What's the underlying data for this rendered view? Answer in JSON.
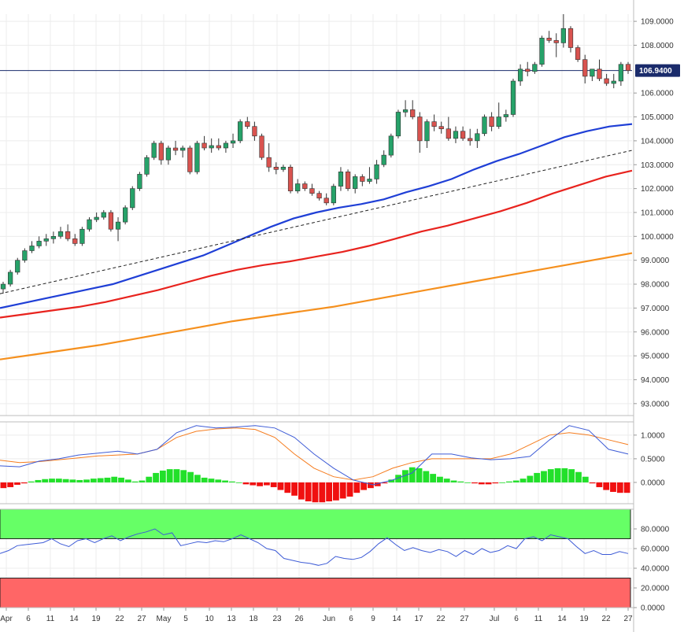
{
  "chart_data": [
    {
      "type": "candlestick",
      "title": "",
      "ylim": [
        92.5,
        109.3
      ],
      "y_ticks": [
        "109.0000",
        "108.0000",
        "106.0000",
        "105.0000",
        "104.0000",
        "103.0000",
        "102.0000",
        "101.0000",
        "100.0000",
        "99.0000",
        "98.0000",
        "97.0000",
        "96.0000",
        "95.0000",
        "94.0000",
        "93.0000"
      ],
      "last_price": "106.9400",
      "last_price_color": "#1a2b6b",
      "up_color": "#26a269",
      "down_color": "#d9534f",
      "candles": [
        {
          "o": 97.8,
          "h": 98.1,
          "l": 97.6,
          "c": 98.0
        },
        {
          "o": 98.0,
          "h": 98.6,
          "l": 97.9,
          "c": 98.5
        },
        {
          "o": 98.5,
          "h": 99.1,
          "l": 98.4,
          "c": 99.0
        },
        {
          "o": 99.0,
          "h": 99.5,
          "l": 98.9,
          "c": 99.4
        },
        {
          "o": 99.4,
          "h": 99.8,
          "l": 99.3,
          "c": 99.6
        },
        {
          "o": 99.6,
          "h": 100.0,
          "l": 99.5,
          "c": 99.8
        },
        {
          "o": 99.8,
          "h": 100.1,
          "l": 99.6,
          "c": 99.9
        },
        {
          "o": 99.9,
          "h": 100.2,
          "l": 99.7,
          "c": 100.0
        },
        {
          "o": 100.0,
          "h": 100.4,
          "l": 99.9,
          "c": 100.2
        },
        {
          "o": 100.2,
          "h": 100.5,
          "l": 99.8,
          "c": 99.9
        },
        {
          "o": 99.9,
          "h": 100.1,
          "l": 99.6,
          "c": 99.7
        },
        {
          "o": 99.7,
          "h": 100.4,
          "l": 99.6,
          "c": 100.3
        },
        {
          "o": 100.3,
          "h": 100.8,
          "l": 100.2,
          "c": 100.7
        },
        {
          "o": 100.7,
          "h": 101.0,
          "l": 100.6,
          "c": 100.8
        },
        {
          "o": 100.8,
          "h": 101.1,
          "l": 100.7,
          "c": 101.0
        },
        {
          "o": 101.0,
          "h": 101.1,
          "l": 100.2,
          "c": 100.3
        },
        {
          "o": 100.3,
          "h": 100.8,
          "l": 99.8,
          "c": 100.6
        },
        {
          "o": 100.6,
          "h": 101.3,
          "l": 100.5,
          "c": 101.2
        },
        {
          "o": 101.2,
          "h": 102.1,
          "l": 101.1,
          "c": 102.0
        },
        {
          "o": 102.0,
          "h": 102.7,
          "l": 101.9,
          "c": 102.6
        },
        {
          "o": 102.6,
          "h": 103.4,
          "l": 102.5,
          "c": 103.3
        },
        {
          "o": 103.3,
          "h": 104.0,
          "l": 103.2,
          "c": 103.9
        },
        {
          "o": 103.9,
          "h": 104.0,
          "l": 103.0,
          "c": 103.2
        },
        {
          "o": 103.2,
          "h": 103.8,
          "l": 103.0,
          "c": 103.7
        },
        {
          "o": 103.7,
          "h": 104.0,
          "l": 103.4,
          "c": 103.6
        },
        {
          "o": 103.6,
          "h": 103.8,
          "l": 103.3,
          "c": 103.7
        },
        {
          "o": 103.7,
          "h": 103.8,
          "l": 102.6,
          "c": 102.7
        },
        {
          "o": 102.7,
          "h": 104.0,
          "l": 102.6,
          "c": 103.9
        },
        {
          "o": 103.9,
          "h": 104.2,
          "l": 103.6,
          "c": 103.7
        },
        {
          "o": 103.7,
          "h": 104.1,
          "l": 103.5,
          "c": 103.8
        },
        {
          "o": 103.8,
          "h": 104.1,
          "l": 103.6,
          "c": 103.7
        },
        {
          "o": 103.7,
          "h": 104.0,
          "l": 103.5,
          "c": 103.9
        },
        {
          "o": 103.9,
          "h": 104.3,
          "l": 103.7,
          "c": 104.0
        },
        {
          "o": 104.0,
          "h": 104.9,
          "l": 103.9,
          "c": 104.8
        },
        {
          "o": 104.8,
          "h": 105.0,
          "l": 104.5,
          "c": 104.6
        },
        {
          "o": 104.6,
          "h": 104.8,
          "l": 104.0,
          "c": 104.2
        },
        {
          "o": 104.2,
          "h": 104.3,
          "l": 103.2,
          "c": 103.3
        },
        {
          "o": 103.3,
          "h": 103.9,
          "l": 102.7,
          "c": 102.9
        },
        {
          "o": 102.9,
          "h": 103.1,
          "l": 102.6,
          "c": 102.8
        },
        {
          "o": 102.8,
          "h": 103.0,
          "l": 102.7,
          "c": 102.9
        },
        {
          "o": 102.9,
          "h": 103.0,
          "l": 101.8,
          "c": 101.9
        },
        {
          "o": 101.9,
          "h": 102.4,
          "l": 101.8,
          "c": 102.2
        },
        {
          "o": 102.2,
          "h": 102.3,
          "l": 101.9,
          "c": 102.0
        },
        {
          "o": 102.0,
          "h": 102.2,
          "l": 101.7,
          "c": 101.8
        },
        {
          "o": 101.8,
          "h": 101.9,
          "l": 101.5,
          "c": 101.6
        },
        {
          "o": 101.6,
          "h": 101.8,
          "l": 101.3,
          "c": 101.4
        },
        {
          "o": 101.4,
          "h": 102.2,
          "l": 101.3,
          "c": 102.1
        },
        {
          "o": 102.1,
          "h": 102.9,
          "l": 101.9,
          "c": 102.7
        },
        {
          "o": 102.7,
          "h": 102.8,
          "l": 101.9,
          "c": 102.0
        },
        {
          "o": 102.0,
          "h": 102.6,
          "l": 101.8,
          "c": 102.5
        },
        {
          "o": 102.5,
          "h": 102.6,
          "l": 102.1,
          "c": 102.3
        },
        {
          "o": 102.3,
          "h": 102.9,
          "l": 102.2,
          "c": 102.4
        },
        {
          "o": 102.4,
          "h": 103.2,
          "l": 102.2,
          "c": 103.0
        },
        {
          "o": 103.0,
          "h": 103.6,
          "l": 102.9,
          "c": 103.4
        },
        {
          "o": 103.4,
          "h": 104.3,
          "l": 103.3,
          "c": 104.2
        },
        {
          "o": 104.2,
          "h": 105.3,
          "l": 104.1,
          "c": 105.2
        },
        {
          "o": 105.2,
          "h": 105.7,
          "l": 105.0,
          "c": 105.3
        },
        {
          "o": 105.3,
          "h": 105.7,
          "l": 104.9,
          "c": 105.0
        },
        {
          "o": 105.0,
          "h": 105.2,
          "l": 103.5,
          "c": 104.0
        },
        {
          "o": 104.0,
          "h": 104.9,
          "l": 103.7,
          "c": 104.8
        },
        {
          "o": 104.8,
          "h": 105.1,
          "l": 104.4,
          "c": 104.6
        },
        {
          "o": 104.6,
          "h": 104.8,
          "l": 104.3,
          "c": 104.5
        },
        {
          "o": 104.5,
          "h": 105.0,
          "l": 104.0,
          "c": 104.1
        },
        {
          "o": 104.1,
          "h": 104.6,
          "l": 103.9,
          "c": 104.4
        },
        {
          "o": 104.4,
          "h": 104.6,
          "l": 104.0,
          "c": 104.1
        },
        {
          "o": 104.1,
          "h": 104.5,
          "l": 103.8,
          "c": 104.0
        },
        {
          "o": 104.0,
          "h": 104.5,
          "l": 103.7,
          "c": 104.3
        },
        {
          "o": 104.3,
          "h": 105.1,
          "l": 104.2,
          "c": 105.0
        },
        {
          "o": 105.0,
          "h": 105.2,
          "l": 104.4,
          "c": 104.6
        },
        {
          "o": 104.6,
          "h": 105.6,
          "l": 104.5,
          "c": 105.0
        },
        {
          "o": 105.0,
          "h": 105.3,
          "l": 104.8,
          "c": 105.1
        },
        {
          "o": 105.1,
          "h": 106.6,
          "l": 105.0,
          "c": 106.5
        },
        {
          "o": 106.5,
          "h": 107.2,
          "l": 106.3,
          "c": 107.0
        },
        {
          "o": 107.0,
          "h": 107.3,
          "l": 106.7,
          "c": 106.9
        },
        {
          "o": 106.9,
          "h": 107.3,
          "l": 106.8,
          "c": 107.2
        },
        {
          "o": 107.2,
          "h": 108.4,
          "l": 107.1,
          "c": 108.3
        },
        {
          "o": 108.3,
          "h": 108.6,
          "l": 108.1,
          "c": 108.2
        },
        {
          "o": 108.2,
          "h": 108.5,
          "l": 107.5,
          "c": 108.1
        },
        {
          "o": 108.1,
          "h": 109.3,
          "l": 107.9,
          "c": 108.7
        },
        {
          "o": 108.7,
          "h": 108.8,
          "l": 107.7,
          "c": 107.9
        },
        {
          "o": 107.9,
          "h": 108.0,
          "l": 107.3,
          "c": 107.4
        },
        {
          "o": 107.4,
          "h": 107.6,
          "l": 106.4,
          "c": 106.7
        },
        {
          "o": 106.7,
          "h": 107.0,
          "l": 106.5,
          "c": 107.0
        },
        {
          "o": 107.0,
          "h": 107.4,
          "l": 106.5,
          "c": 106.6
        },
        {
          "o": 106.6,
          "h": 106.8,
          "l": 106.3,
          "c": 106.4
        },
        {
          "o": 106.4,
          "h": 106.8,
          "l": 106.2,
          "c": 106.5
        },
        {
          "o": 106.5,
          "h": 107.3,
          "l": 106.3,
          "c": 107.2
        },
        {
          "o": 107.2,
          "h": 107.3,
          "l": 106.8,
          "c": 106.94
        }
      ],
      "moving_averages": [
        {
          "color": "#1f3fd6",
          "values": [
            97.0,
            97.2,
            97.4,
            97.6,
            97.8,
            98.0,
            98.3,
            98.6,
            98.9,
            99.2,
            99.6,
            100.0,
            100.4,
            100.75,
            101.0,
            101.2,
            101.35,
            101.55,
            101.85,
            102.1,
            102.4,
            102.8,
            103.15,
            103.45,
            103.8,
            104.15,
            104.4,
            104.6,
            104.7
          ]
        },
        {
          "color": "#e8231e",
          "values": [
            96.6,
            96.75,
            96.9,
            97.05,
            97.25,
            97.5,
            97.75,
            98.05,
            98.35,
            98.6,
            98.8,
            98.95,
            99.15,
            99.35,
            99.6,
            99.9,
            100.2,
            100.45,
            100.75,
            101.05,
            101.4,
            101.8,
            102.15,
            102.5,
            102.75
          ]
        },
        {
          "color": "#f5901e",
          "values": [
            94.85,
            95.05,
            95.25,
            95.45,
            95.7,
            95.95,
            96.2,
            96.45,
            96.65,
            96.85,
            97.05,
            97.3,
            97.55,
            97.8,
            98.05,
            98.3,
            98.55,
            98.8,
            99.05,
            99.3
          ]
        },
        {
          "color": "#222222",
          "dash": true,
          "values": [
            97.6,
            103.6
          ]
        }
      ],
      "horizontal_line": 106.94
    },
    {
      "type": "macd",
      "y_ticks": [
        "1.0000",
        "0.5000",
        "0.0000"
      ],
      "ylim": [
        -0.45,
        1.28
      ],
      "macd_color": "#3d5bd6",
      "signal_color": "#f57c1e",
      "hist_up_color": "#22e02a",
      "hist_down_color": "#f01010",
      "macd": [
        0.35,
        0.33,
        0.45,
        0.5,
        0.58,
        0.62,
        0.66,
        0.6,
        0.7,
        1.05,
        1.2,
        1.15,
        1.17,
        1.2,
        1.15,
        0.95,
        0.6,
        0.3,
        0.05,
        -0.05,
        0.05,
        0.2,
        0.6,
        0.6,
        0.52,
        0.48,
        0.5,
        0.55,
        0.9,
        1.2,
        1.1,
        0.7,
        0.6
      ],
      "signal": [
        0.47,
        0.42,
        0.44,
        0.48,
        0.52,
        0.56,
        0.58,
        0.6,
        0.7,
        0.95,
        1.08,
        1.13,
        1.15,
        1.12,
        0.95,
        0.6,
        0.3,
        0.12,
        0.05,
        0.12,
        0.3,
        0.42,
        0.5,
        0.5,
        0.5,
        0.5,
        0.6,
        0.8,
        1.0,
        1.05,
        1.0,
        0.9,
        0.8
      ],
      "histogram": [
        -0.12,
        -0.1,
        -0.05,
        -0.02,
        0.02,
        0.05,
        0.07,
        0.08,
        0.08,
        0.07,
        0.06,
        0.05,
        0.06,
        0.08,
        0.09,
        0.1,
        0.12,
        0.1,
        0.06,
        0.02,
        0.04,
        0.12,
        0.2,
        0.25,
        0.28,
        0.28,
        0.26,
        0.22,
        0.16,
        0.1,
        0.08,
        0.06,
        0.04,
        0.02,
        0.0,
        -0.04,
        -0.06,
        -0.08,
        -0.06,
        -0.1,
        -0.16,
        -0.22,
        -0.28,
        -0.36,
        -0.4,
        -0.42,
        -0.42,
        -0.4,
        -0.38,
        -0.34,
        -0.3,
        -0.22,
        -0.16,
        -0.12,
        -0.08,
        -0.02,
        0.06,
        0.16,
        0.26,
        0.32,
        0.3,
        0.24,
        0.18,
        0.12,
        0.08,
        0.04,
        0.02,
        0.0,
        -0.02,
        -0.04,
        -0.04,
        -0.02,
        0.0,
        0.02,
        0.04,
        0.08,
        0.14,
        0.2,
        0.24,
        0.28,
        0.3,
        0.3,
        0.28,
        0.22,
        0.12,
        -0.02,
        -0.1,
        -0.16,
        -0.2,
        -0.22,
        -0.22
      ]
    },
    {
      "type": "rsi",
      "y_ticks": [
        "80.0000",
        "60.0000",
        "40.0000",
        "20.0000",
        "0.0000"
      ],
      "ylim": [
        0,
        100
      ],
      "overbought_zone": [
        70,
        100
      ],
      "oversold_zone": [
        0,
        30
      ],
      "overbought_color": "#66ff66",
      "oversold_color": "#ff6666",
      "line_color": "#3d5bd6",
      "values": [
        55,
        58,
        63,
        64,
        65,
        66,
        70,
        65,
        62,
        68,
        70,
        66,
        70,
        73,
        68,
        72,
        75,
        77,
        80,
        74,
        76,
        63,
        65,
        67,
        66,
        68,
        67,
        70,
        74,
        70,
        66,
        60,
        58,
        50,
        48,
        46,
        45,
        43,
        45,
        52,
        50,
        49,
        51,
        57,
        65,
        71,
        64,
        58,
        61,
        58,
        56,
        59,
        57,
        52,
        58,
        54,
        60,
        56,
        58,
        63,
        60,
        70,
        72,
        68,
        74,
        72,
        70,
        62,
        55,
        58,
        54,
        54,
        57,
        55
      ]
    }
  ],
  "x_axis": {
    "labels": [
      "Apr",
      "6",
      "11",
      "14",
      "19",
      "22",
      "27",
      "May",
      "5",
      "10",
      "13",
      "18",
      "23",
      "26",
      "Jun",
      "6",
      "9",
      "14",
      "17",
      "22",
      "27",
      "Jul",
      "6",
      "11",
      "14",
      "19",
      "22",
      "27"
    ]
  }
}
